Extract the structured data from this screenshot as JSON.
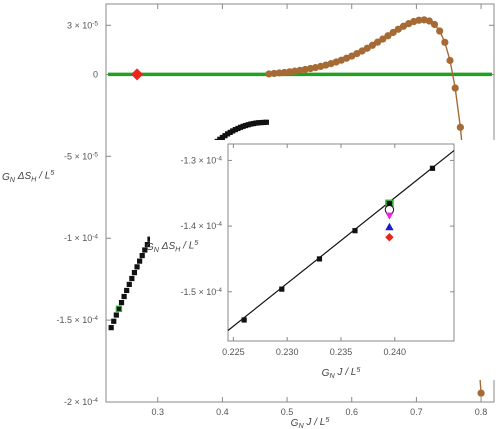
{
  "chart_data": [
    {
      "type": "scatter",
      "xlabel": "G_N J / L^5",
      "ylabel": "G_N ΔS_H / L^5",
      "xlim": [
        0.22,
        0.82
      ],
      "ylim": [
        -0.0002,
        4.3e-05
      ],
      "x_ticks": [
        "0.3",
        "0.4",
        "0.5",
        "0.6",
        "0.7",
        "0.8"
      ],
      "y_ticks": [
        "3 × 10^-5",
        "0",
        "-5 × 10^-5",
        "-1 × 10^-4",
        "-1.5 × 10^-4",
        "-2 × 10^-4"
      ],
      "grid": false,
      "colors": {
        "black_series": "#111111",
        "brown_series": "#a66b35",
        "green_line": "#22a022",
        "marker_highlight": "#33aa33",
        "critical_point": "#e8241c",
        "frame": "#888888"
      },
      "horizontal_line": {
        "y": 0
      },
      "critical_point": {
        "x": 0.268,
        "y": 0
      },
      "series": [
        {
          "marker": "square",
          "x": [
            0.228,
            0.232,
            0.236,
            0.24,
            0.244,
            0.248,
            0.252,
            0.256,
            0.26,
            0.264,
            0.268,
            0.272,
            0.276,
            0.28,
            0.284,
            0.288,
            0.292,
            0.296,
            0.3,
            0.304,
            0.308,
            0.312,
            0.316,
            0.32,
            0.324,
            0.328,
            0.332,
            0.336,
            0.34,
            0.344,
            0.348,
            0.352,
            0.356,
            0.36,
            0.364,
            0.368,
            0.372,
            0.376,
            0.38,
            0.384,
            0.388,
            0.392,
            0.396,
            0.4,
            0.404,
            0.408,
            0.412,
            0.416,
            0.42,
            0.424,
            0.428,
            0.432,
            0.436,
            0.44,
            0.444,
            0.448,
            0.452,
            0.456,
            0.46,
            0.464,
            0.468
          ],
          "y": [
            -0.0001546,
            -0.0001507,
            -0.0001469,
            -0.0001431,
            -0.0001393,
            -0.0001356,
            -0.0001319,
            -0.0001282,
            -0.0001246,
            -0.000121,
            -0.0001175,
            -0.000114,
            -0.0001106,
            -0.0001072,
            -0.0001039,
            -0.0001006,
            -9.75e-05,
            -9.43e-05,
            -9.13e-05,
            -8.83e-05,
            -8.53e-05,
            -8.25e-05,
            -7.97e-05,
            -7.7e-05,
            -7.43e-05,
            -7.17e-05,
            -6.92e-05,
            -6.68e-05,
            -6.44e-05,
            -6.21e-05,
            -5.99e-05,
            -5.78e-05,
            -5.57e-05,
            -5.38e-05,
            -5.19e-05,
            -5.01e-05,
            -4.84e-05,
            -4.67e-05,
            -4.51e-05,
            -4.36e-05,
            -4.22e-05,
            -4.09e-05,
            -3.96e-05,
            -3.85e-05,
            -3.74e-05,
            -3.63e-05,
            -3.54e-05,
            -3.45e-05,
            -3.37e-05,
            -3.3e-05,
            -3.23e-05,
            -3.17e-05,
            -3.12e-05,
            -3.07e-05,
            -3.03e-05,
            -3e-05,
            -2.97e-05,
            -2.95e-05,
            -2.94e-05,
            -2.93e-05,
            -2.92e-05
          ],
          "highlight_x": [
            0.24,
            0.304,
            0.388
          ]
        },
        {
          "marker": "circle",
          "x": [
            0.472,
            0.48,
            0.488,
            0.496,
            0.504,
            0.512,
            0.52,
            0.528,
            0.536,
            0.544,
            0.552,
            0.56,
            0.568,
            0.576,
            0.584,
            0.592,
            0.6,
            0.608,
            0.616,
            0.624,
            0.632,
            0.64,
            0.648,
            0.656,
            0.664,
            0.672,
            0.68,
            0.688,
            0.696,
            0.704,
            0.712,
            0.72,
            0.728,
            0.736,
            0.744,
            0.752,
            0.76,
            0.768,
            0.776,
            0.784,
            0.792,
            0.8
          ],
          "y": [
            3e-07,
            6e-07,
            9e-07,
            1.2e-06,
            1.6e-06,
            2e-06,
            2.5e-06,
            3e-06,
            3.6e-06,
            4.2e-06,
            4.9e-06,
            5.7e-06,
            6.6e-06,
            7.6e-06,
            8.7e-06,
            9.9e-06,
            1.12e-05,
            1.27e-05,
            1.43e-05,
            1.6e-05,
            1.78e-05,
            1.97e-05,
            2.16e-05,
            2.36e-05,
            2.56e-05,
            2.76e-05,
            2.94e-05,
            3.1e-05,
            3.23e-05,
            3.31e-05,
            3.33e-05,
            3.26e-05,
            3.05e-05,
            2.65e-05,
            1.96e-05,
            8.5e-06,
            -8.3e-06,
            -3.23e-05,
            -6.49e-05,
            -0.0001063,
            -0.0001507,
            -0.0001946
          ]
        }
      ]
    },
    {
      "type": "scatter",
      "inset": true,
      "xlabel": "G_N J / L^5",
      "ylabel": "G_N ΔS_H / L^5",
      "xlim": [
        0.2245,
        0.2455
      ],
      "ylim": [
        -0.0001575,
        -0.0001275
      ],
      "x_ticks": [
        "0.225",
        "0.230",
        "0.235",
        "0.240"
      ],
      "y_ticks": [
        "-1.3 × 10^-4",
        "-1.4 × 10^-4",
        "-1.5 × 10^-4"
      ],
      "fit_line": {
        "x": [
          0.2245,
          0.2455
        ],
        "y": [
          -0.0001559,
          -0.0001285
        ]
      },
      "series": [
        {
          "marker": "square",
          "x": [
            0.226,
            0.2295,
            0.233,
            0.2363,
            0.2395,
            0.2435
          ],
          "y": [
            -0.0001543,
            -0.0001496,
            -0.000145,
            -0.0001407,
            -0.0001366,
            -0.0001312
          ]
        }
      ],
      "special_points": [
        {
          "marker": "green-square",
          "x": 0.2395,
          "y": -0.0001366,
          "color": "#33aa33"
        },
        {
          "marker": "open-circle",
          "x": 0.2395,
          "y": -0.0001375,
          "color": "#111111"
        },
        {
          "marker": "magenta-triangle-down",
          "x": 0.2395,
          "y": -0.0001384,
          "color": "#ee22ee"
        },
        {
          "marker": "blue-triangle-up",
          "x": 0.2395,
          "y": -0.0001401,
          "color": "#1b1bcc"
        },
        {
          "marker": "red-diamond",
          "x": 0.2395,
          "y": -0.0001417,
          "color": "#e8241c"
        }
      ]
    }
  ]
}
